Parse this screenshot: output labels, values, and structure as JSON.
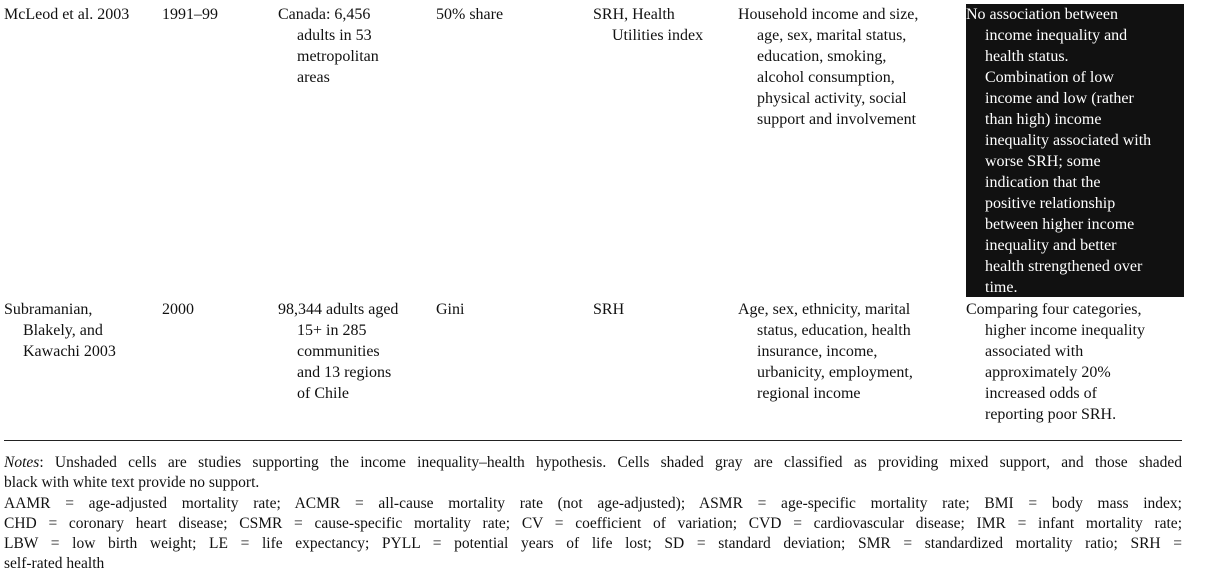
{
  "table": {
    "rows": [
      [
        [
          "McLeod et al. 2003"
        ],
        [
          "1991–99"
        ],
        [
          "Canada: 6,456",
          "adults in 53",
          "metropolitan",
          "areas"
        ],
        [
          "50% share"
        ],
        [
          "SRH, Health",
          "Utilities index"
        ],
        [
          "Household income and size,",
          "age, sex, marital status,",
          "education, smoking,",
          "alcohol consumption,",
          "physical activity, social",
          "support and involvement"
        ],
        [
          "No association between",
          "income inequality and",
          "health status.",
          "Combination of low",
          "income and low (rather",
          "than high) income",
          "inequality associated with",
          "worse SRH; some",
          "indication that the",
          "positive relationship",
          "between higher income",
          "inequality and better",
          "health strengthened over",
          "time."
        ]
      ],
      [
        [
          "Subramanian,",
          "Blakely, and",
          "Kawachi 2003"
        ],
        [
          "2000"
        ],
        [
          "98,344 adults aged",
          "15+ in 285",
          "communities",
          "and 13 regions",
          "of Chile"
        ],
        [
          "Gini"
        ],
        [
          "SRH"
        ],
        [
          "Age, sex, ethnicity, marital",
          "status, education, health",
          "insurance, income,",
          "urbanicity, employment,",
          "regional income"
        ],
        [
          "Comparing four categories,",
          "higher income inequality",
          "associated with",
          "approximately 20%",
          "increased odds of",
          "reporting poor SRH."
        ]
      ]
    ]
  },
  "notes": {
    "label": "Notes",
    "lines": [
      ": Unshaded cells are studies supporting the income inequality–health hypothesis. Cells shaded gray are classified as providing mixed support, and those shaded",
      "black with white text provide no support."
    ]
  },
  "abbreviations": [
    "AAMR = age-adjusted mortality rate; ACMR = all-cause mortality rate (not age-adjusted); ASMR = age-specific mortality rate; BMI = body mass index;",
    "CHD = coronary heart disease; CSMR = cause-specific mortality rate; CV = coefficient of variation; CVD = cardiovascular disease; IMR = infant mortality rate;",
    "LBW = low birth weight; LE = life expectancy; PYLL = potential years of life lost; SD = standard deviation; SMR = standardized mortality ratio; SRH =",
    "self-rated health"
  ]
}
